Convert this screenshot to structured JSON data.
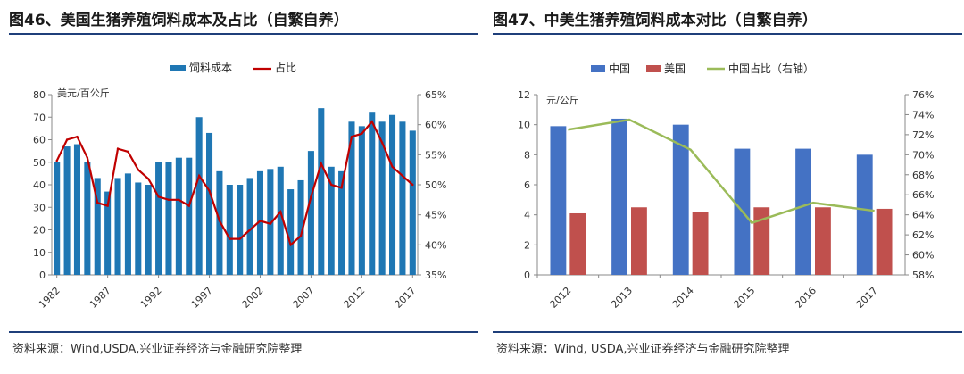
{
  "left": {
    "title": "图46、美国生猪养殖饲料成本及占比（自繁自养）",
    "source": "资料来源：Wind,USDA,兴业证券经济与金融研究院整理",
    "chart_data": {
      "type": "bar",
      "unit_label": "美元/百公斤",
      "x": [
        1982,
        1983,
        1984,
        1985,
        1986,
        1987,
        1988,
        1989,
        1990,
        1991,
        1992,
        1993,
        1994,
        1995,
        1996,
        1997,
        1998,
        1999,
        2000,
        2001,
        2002,
        2003,
        2004,
        2005,
        2006,
        2007,
        2008,
        2009,
        2010,
        2011,
        2012,
        2013,
        2014,
        2015,
        2016,
        2017
      ],
      "x_tick_labels": [
        "1982",
        "1987",
        "1992",
        "1997",
        "2002",
        "2007",
        "2012",
        "2017"
      ],
      "series": [
        {
          "name": "饲料成本",
          "kind": "bar",
          "axis": "left",
          "color": "#1f77b4",
          "values": [
            50,
            57,
            58,
            50,
            43,
            37,
            43,
            45,
            41,
            40,
            50,
            50,
            52,
            52,
            70,
            63,
            46,
            40,
            40,
            43,
            46,
            47,
            48,
            38,
            42,
            55,
            74,
            48,
            46,
            68,
            66,
            72,
            68,
            71,
            68,
            64
          ]
        },
        {
          "name": "占比",
          "kind": "line",
          "axis": "right",
          "color": "#c00000",
          "values": [
            54,
            57.5,
            58,
            54.5,
            47,
            46.5,
            56,
            55.5,
            52.5,
            51,
            48,
            47.5,
            47.5,
            46.5,
            51.5,
            49,
            44,
            41,
            41,
            42.5,
            44,
            43.5,
            45.5,
            40,
            41.5,
            48,
            53.5,
            50,
            49.5,
            58,
            58.5,
            60.5,
            57,
            53,
            51.5,
            50
          ]
        }
      ],
      "y_left": {
        "min": 0,
        "max": 80,
        "step": 10,
        "ticks": [
          "0",
          "10",
          "20",
          "30",
          "40",
          "50",
          "60",
          "70",
          "80"
        ]
      },
      "y_right": {
        "min": 35,
        "max": 65,
        "step": 5,
        "ticks": [
          "35%",
          "40%",
          "45%",
          "50%",
          "55%",
          "60%",
          "65%"
        ]
      },
      "legend_position": "top-center"
    }
  },
  "right": {
    "title": "图47、中美生猪养殖饲料成本对比（自繁自养）",
    "source": "资料来源：Wind, USDA,兴业证券经济与金融研究院整理",
    "chart_data": {
      "type": "bar",
      "unit_label": "元/公斤",
      "categories": [
        "2012",
        "2013",
        "2014",
        "2015",
        "2016",
        "2017"
      ],
      "series": [
        {
          "name": "中国",
          "kind": "bar",
          "axis": "left",
          "color": "#4472c4",
          "values": [
            9.9,
            10.4,
            10.0,
            8.4,
            8.4,
            8.0
          ]
        },
        {
          "name": "美国",
          "kind": "bar",
          "axis": "left",
          "color": "#c0504d",
          "values": [
            4.1,
            4.5,
            4.2,
            4.5,
            4.5,
            4.4
          ]
        },
        {
          "name": "中国占比（右轴）",
          "kind": "line",
          "axis": "right",
          "color": "#9bbb59",
          "values": [
            72.5,
            73.5,
            70.5,
            63.2,
            65.2,
            64.4
          ]
        }
      ],
      "y_left": {
        "min": 0,
        "max": 12,
        "step": 2,
        "ticks": [
          "0",
          "2",
          "4",
          "6",
          "8",
          "10",
          "12"
        ]
      },
      "y_right": {
        "min": 58,
        "max": 76,
        "step": 2,
        "ticks": [
          "58%",
          "60%",
          "62%",
          "64%",
          "66%",
          "68%",
          "70%",
          "72%",
          "74%",
          "76%"
        ]
      },
      "legend_position": "top-center"
    }
  }
}
